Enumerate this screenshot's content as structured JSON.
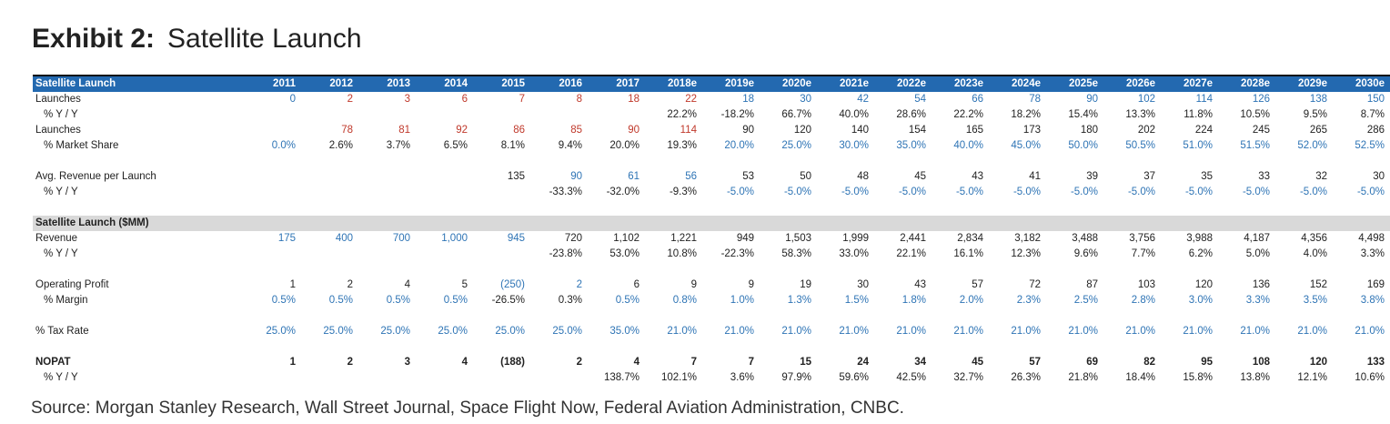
{
  "title": {
    "exhibit": "Exhibit 2:",
    "name": "Satellite Launch"
  },
  "colors": {
    "b": "#2e74b5",
    "r": "#c0392b",
    "k": "#222222",
    "header_bg": "#2369b0",
    "section_bg": "#d9d9d9"
  },
  "table": {
    "header": {
      "label": "Satellite Launch",
      "years": [
        "2011",
        "2012",
        "2013",
        "2014",
        "2015",
        "2016",
        "2017",
        "2018e",
        "2019e",
        "2020e",
        "2021e",
        "2022e",
        "2023e",
        "2024e",
        "2025e",
        "2026e",
        "2027e",
        "2028e",
        "2029e",
        "2030e"
      ]
    },
    "rows": [
      {
        "type": "data",
        "label": "Launches",
        "values": [
          "0",
          "2",
          "3",
          "6",
          "7",
          "8",
          "18",
          "22",
          "18",
          "30",
          "42",
          "54",
          "66",
          "78",
          "90",
          "102",
          "114",
          "126",
          "138",
          "150"
        ],
        "colors": "brrrrrrrbbbbbbbbbbbb"
      },
      {
        "type": "data",
        "indent": true,
        "label": "% Y / Y",
        "values": [
          "",
          "",
          "",
          "",
          "",
          "",
          "",
          "22.2%",
          "-18.2%",
          "66.7%",
          "40.0%",
          "28.6%",
          "22.2%",
          "18.2%",
          "15.4%",
          "13.3%",
          "11.8%",
          "10.5%",
          "9.5%",
          "8.7%"
        ],
        "colors": "kkkkkkkkkkkkkkkkkkkk"
      },
      {
        "type": "data",
        "label": "Launches",
        "values": [
          "",
          "78",
          "81",
          "92",
          "86",
          "85",
          "90",
          "114",
          "90",
          "120",
          "140",
          "154",
          "165",
          "173",
          "180",
          "202",
          "224",
          "245",
          "265",
          "286"
        ],
        "colors": "krrrrrrrkkkkkkkkkkkk"
      },
      {
        "type": "data",
        "indent": true,
        "label": "% Market Share",
        "values": [
          "0.0%",
          "2.6%",
          "3.7%",
          "6.5%",
          "8.1%",
          "9.4%",
          "20.0%",
          "19.3%",
          "20.0%",
          "25.0%",
          "30.0%",
          "35.0%",
          "40.0%",
          "45.0%",
          "50.0%",
          "50.5%",
          "51.0%",
          "51.5%",
          "52.0%",
          "52.5%"
        ],
        "colors": "bkkkkkkkbbbbbbbbbbbb"
      },
      {
        "type": "blank"
      },
      {
        "type": "data",
        "label": "Avg. Revenue per Launch",
        "values": [
          "",
          "",
          "",
          "",
          "135",
          "90",
          "61",
          "56",
          "53",
          "50",
          "48",
          "45",
          "43",
          "41",
          "39",
          "37",
          "35",
          "33",
          "32",
          "30"
        ],
        "colors": "kkkkkbbbkkkkkkkkkkkk"
      },
      {
        "type": "data",
        "indent": true,
        "label": "% Y / Y",
        "values": [
          "",
          "",
          "",
          "",
          "",
          "-33.3%",
          "-32.0%",
          "-9.3%",
          "-5.0%",
          "-5.0%",
          "-5.0%",
          "-5.0%",
          "-5.0%",
          "-5.0%",
          "-5.0%",
          "-5.0%",
          "-5.0%",
          "-5.0%",
          "-5.0%",
          "-5.0%"
        ],
        "colors": "kkkkkkkkbbbbbbbbbbbb"
      },
      {
        "type": "blank"
      },
      {
        "type": "section",
        "label": "Satellite Launch ($MM)"
      },
      {
        "type": "data",
        "label": "Revenue",
        "values": [
          "175",
          "400",
          "700",
          "1,000",
          "945",
          "720",
          "1,102",
          "1,221",
          "949",
          "1,503",
          "1,999",
          "2,441",
          "2,834",
          "3,182",
          "3,488",
          "3,756",
          "3,988",
          "4,187",
          "4,356",
          "4,498"
        ],
        "colors": "bbbbbkkkkkkkkkkkkkkk"
      },
      {
        "type": "data",
        "indent": true,
        "label": "% Y / Y",
        "values": [
          "",
          "",
          "",
          "",
          "",
          "-23.8%",
          "53.0%",
          "10.8%",
          "-22.3%",
          "58.3%",
          "33.0%",
          "22.1%",
          "16.1%",
          "12.3%",
          "9.6%",
          "7.7%",
          "6.2%",
          "5.0%",
          "4.0%",
          "3.3%"
        ],
        "colors": "kkkkkkkkkkkkkkkkkkkk"
      },
      {
        "type": "blank"
      },
      {
        "type": "data",
        "label": "Operating Profit",
        "values": [
          "1",
          "2",
          "4",
          "5",
          "(250)",
          "2",
          "6",
          "9",
          "9",
          "19",
          "30",
          "43",
          "57",
          "72",
          "87",
          "103",
          "120",
          "136",
          "152",
          "169"
        ],
        "colors": "kkkkbbkkkkkkkkkkkkkk"
      },
      {
        "type": "data",
        "indent": true,
        "label": "% Margin",
        "values": [
          "0.5%",
          "0.5%",
          "0.5%",
          "0.5%",
          "-26.5%",
          "0.3%",
          "0.5%",
          "0.8%",
          "1.0%",
          "1.3%",
          "1.5%",
          "1.8%",
          "2.0%",
          "2.3%",
          "2.5%",
          "2.8%",
          "3.0%",
          "3.3%",
          "3.5%",
          "3.8%"
        ],
        "colors": "bbbbkkbbbbbbbbbbbbbb"
      },
      {
        "type": "blank"
      },
      {
        "type": "data",
        "label": "% Tax Rate",
        "values": [
          "25.0%",
          "25.0%",
          "25.0%",
          "25.0%",
          "25.0%",
          "25.0%",
          "35.0%",
          "21.0%",
          "21.0%",
          "21.0%",
          "21.0%",
          "21.0%",
          "21.0%",
          "21.0%",
          "21.0%",
          "21.0%",
          "21.0%",
          "21.0%",
          "21.0%",
          "21.0%"
        ],
        "colors": "bbbbbbbbbbbbbbbbbbbb"
      },
      {
        "type": "blank"
      },
      {
        "type": "data",
        "bold": true,
        "label": "NOPAT",
        "values": [
          "1",
          "2",
          "3",
          "4",
          "(188)",
          "2",
          "4",
          "7",
          "7",
          "15",
          "24",
          "34",
          "45",
          "57",
          "69",
          "82",
          "95",
          "108",
          "120",
          "133"
        ],
        "colors": "kkkkkkkkkkkkkkkkkkkk"
      },
      {
        "type": "data",
        "indent": true,
        "label": "% Y / Y",
        "values": [
          "",
          "",
          "",
          "",
          "",
          "",
          "138.7%",
          "102.1%",
          "3.6%",
          "97.9%",
          "59.6%",
          "42.5%",
          "32.7%",
          "26.3%",
          "21.8%",
          "18.4%",
          "15.8%",
          "13.8%",
          "12.1%",
          "10.6%"
        ],
        "colors": "kkkkkkkkkkkkkkkkkkkk"
      }
    ]
  },
  "source": "Source: Morgan Stanley Research, Wall Street Journal, Space Flight Now, Federal Aviation Administration, CNBC."
}
